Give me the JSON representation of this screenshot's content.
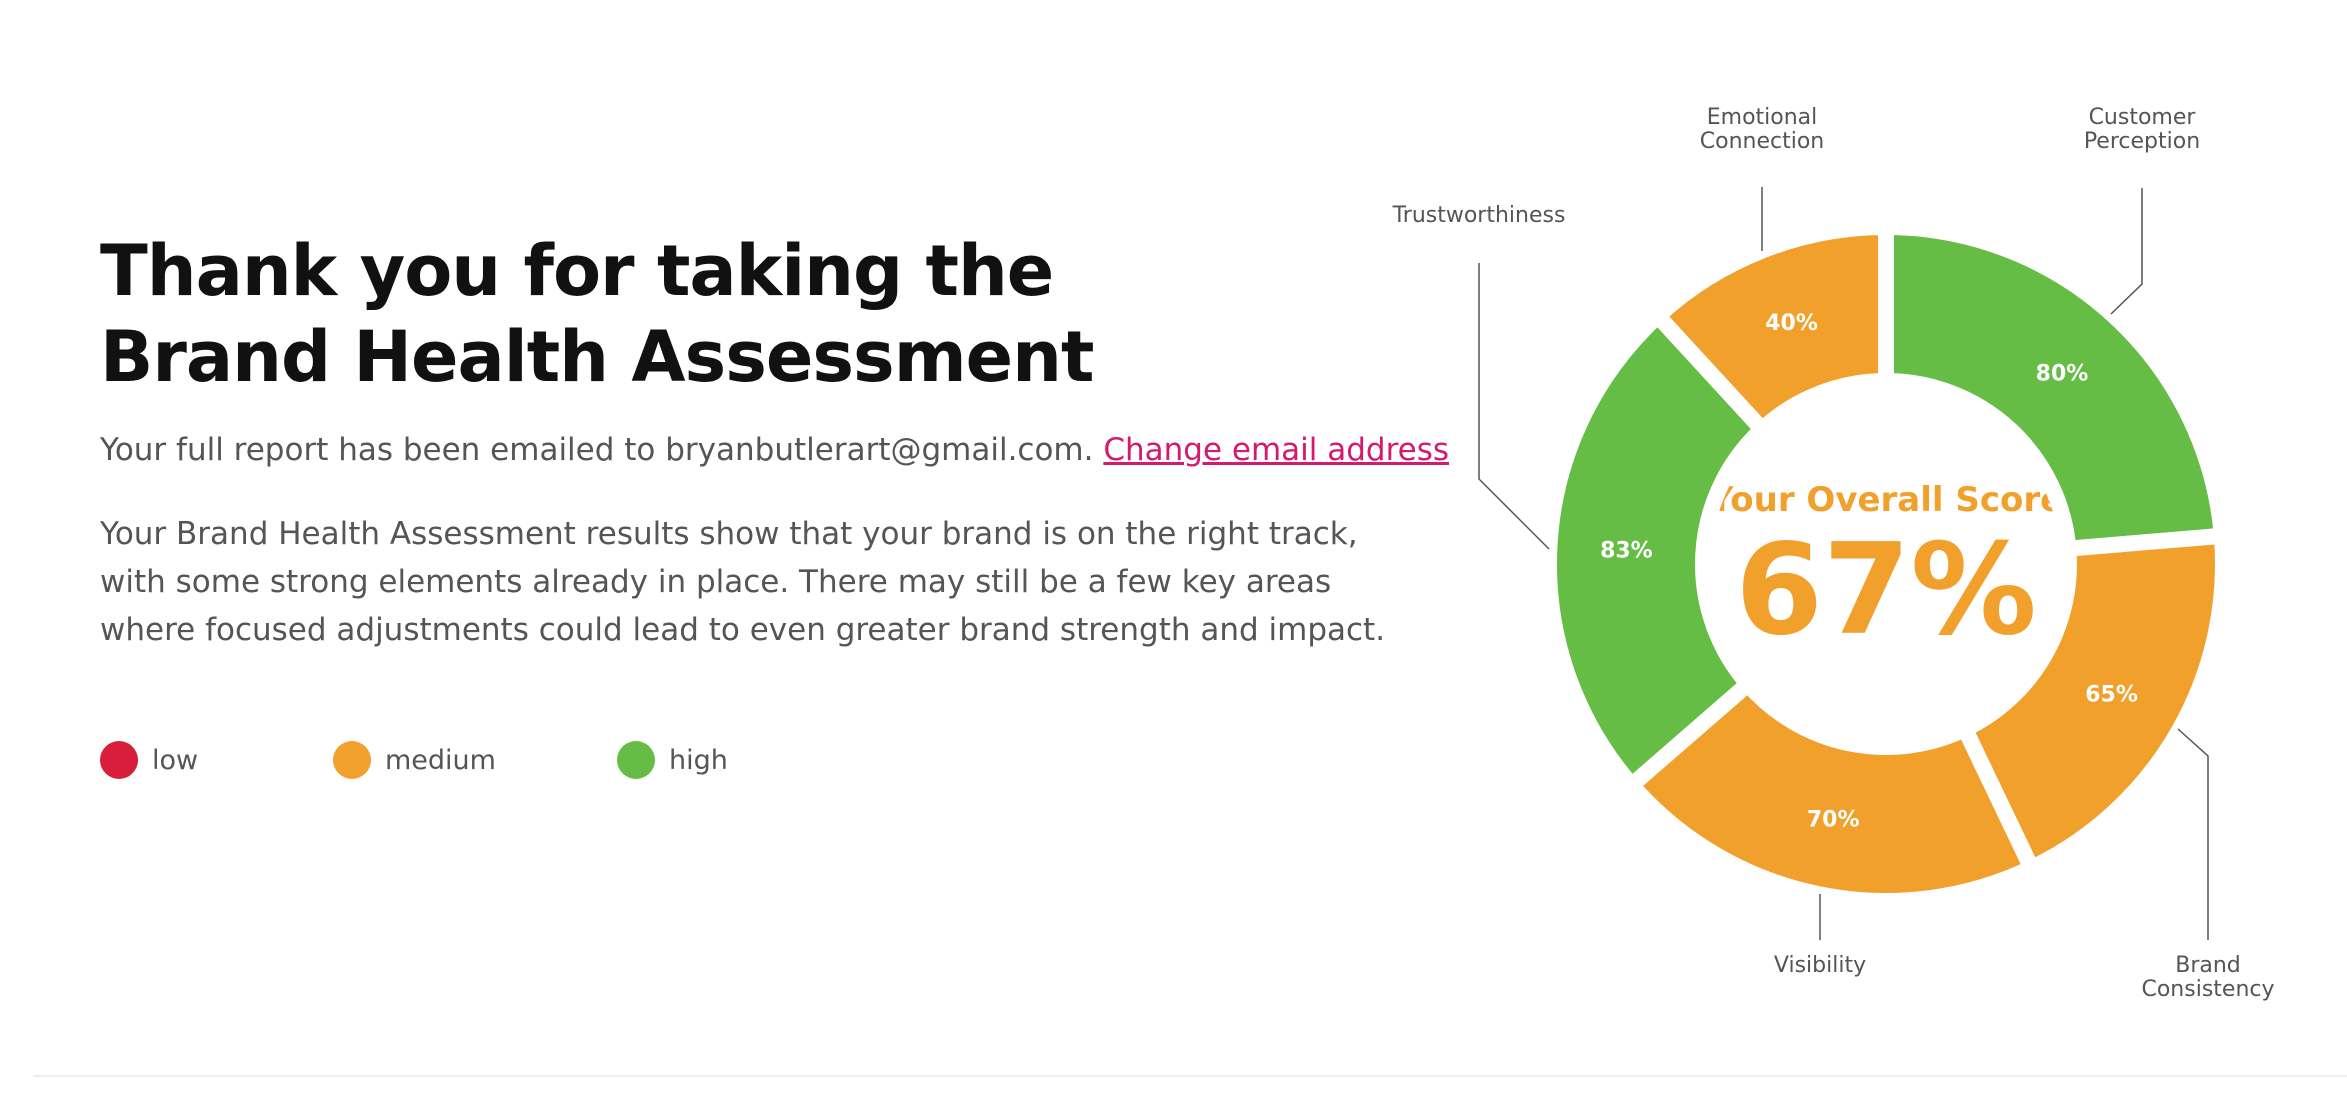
{
  "header": {
    "title_lines": [
      "Thank you for taking the",
      "Brand Health Assessment"
    ]
  },
  "email_text": "Your full report has been emailed to bryanbutlerart@gmail.com.",
  "change_link": "Change email address",
  "summary": "Your Brand Health Assessment results show that your brand is on the right track, with some strong elements already in place. There may still be a few key areas where focused adjustments could lead to even greater brand strength and impact.",
  "legend": [
    {
      "label": "low",
      "color": "#d81e3a"
    },
    {
      "label": "medium",
      "color": "#f2a02c"
    },
    {
      "label": "high",
      "color": "#66bd46"
    }
  ],
  "chart_data": {
    "type": "donut",
    "center_title": "Your Overall Score",
    "center_value_label": "67%",
    "categories": [
      "Customer Perception",
      "Brand Consistency",
      "Visibility",
      "Trustworthiness",
      "Emotional Connection"
    ],
    "values": [
      80,
      65,
      70,
      83,
      40
    ],
    "value_labels": [
      "80%",
      "65%",
      "70%",
      "83%",
      "40%"
    ],
    "colors": [
      "#66bd46",
      "#f2a02c",
      "#f2a02c",
      "#66bd46",
      "#f2a02c"
    ]
  }
}
